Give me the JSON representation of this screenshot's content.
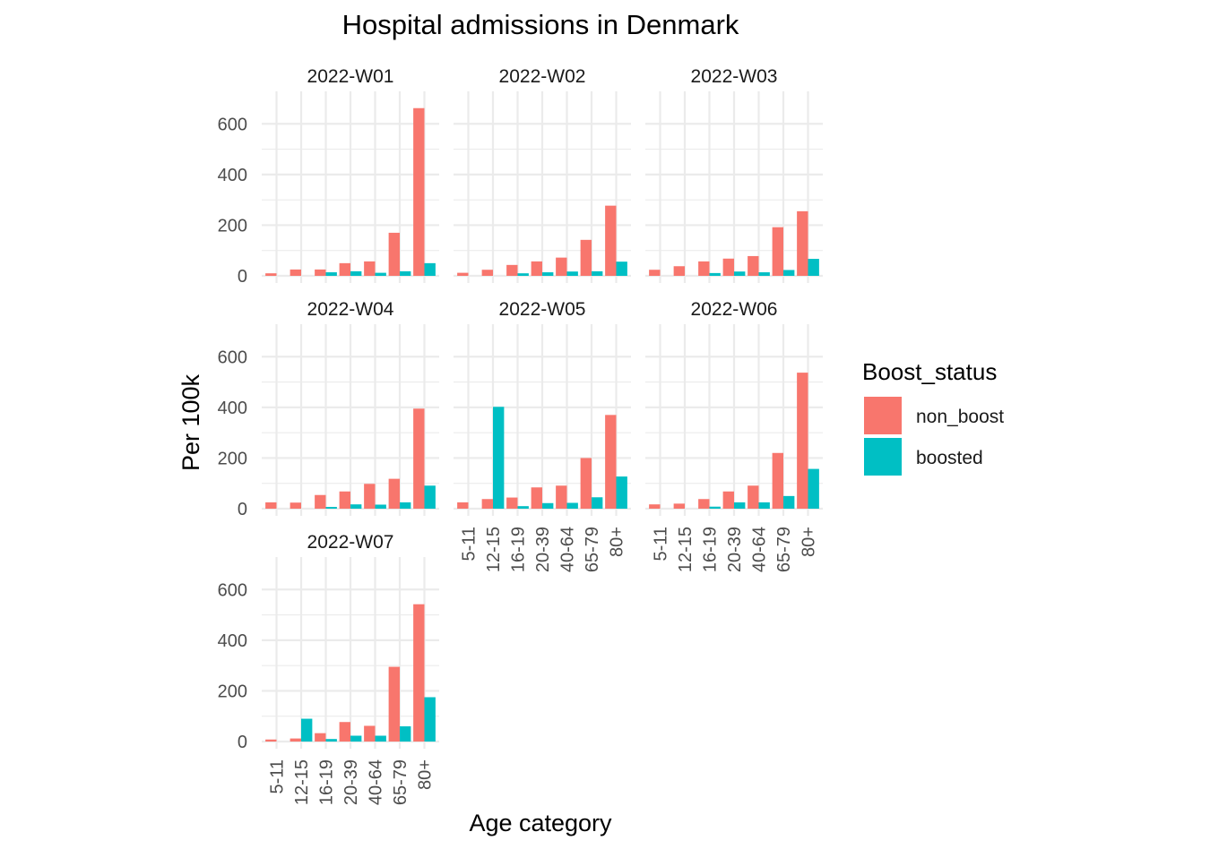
{
  "chart_data": {
    "type": "bar",
    "title": "Hospital admissions in Denmark",
    "xlabel": "Age category",
    "ylabel": "Per 100k",
    "ylim": [
      0,
      700
    ],
    "yticks": [
      0,
      200,
      400,
      600
    ],
    "grid": true,
    "legend": {
      "title": "Boost_status",
      "position": "right",
      "entries": [
        {
          "name": "non_boost",
          "color": "#F8766D"
        },
        {
          "name": "boosted",
          "color": "#00BFC4"
        }
      ]
    },
    "categories": [
      "5-11",
      "12-15",
      "16-19",
      "20-39",
      "40-64",
      "65-79",
      "80+"
    ],
    "panels": [
      {
        "label": "2022-W01",
        "series": [
          {
            "name": "non_boost",
            "values": [
              10,
              25,
              25,
              50,
              57,
              170,
              662
            ]
          },
          {
            "name": "boosted",
            "values": [
              0,
              0,
              14,
              18,
              12,
              18,
              50
            ]
          }
        ]
      },
      {
        "label": "2022-W02",
        "series": [
          {
            "name": "non_boost",
            "values": [
              12,
              24,
              43,
              57,
              72,
              142,
              277
            ]
          },
          {
            "name": "boosted",
            "values": [
              0,
              0,
              10,
              14,
              17,
              18,
              56
            ]
          }
        ]
      },
      {
        "label": "2022-W03",
        "series": [
          {
            "name": "non_boost",
            "values": [
              24,
              38,
              57,
              68,
              78,
              192,
              255
            ]
          },
          {
            "name": "boosted",
            "values": [
              0,
              0,
              11,
              17,
              14,
              23,
              67
            ]
          }
        ]
      },
      {
        "label": "2022-W04",
        "series": [
          {
            "name": "non_boost",
            "values": [
              25,
              24,
              54,
              68,
              98,
              118,
              395
            ]
          },
          {
            "name": "boosted",
            "values": [
              0,
              0,
              7,
              17,
              16,
              25,
              91
            ]
          }
        ]
      },
      {
        "label": "2022-W05",
        "series": [
          {
            "name": "non_boost",
            "values": [
              25,
              38,
              44,
              84,
              91,
              200,
              370
            ]
          },
          {
            "name": "boosted",
            "values": [
              0,
              402,
              10,
              22,
              23,
              45,
              127
            ]
          }
        ]
      },
      {
        "label": "2022-W06",
        "series": [
          {
            "name": "non_boost",
            "values": [
              17,
              20,
              38,
              68,
              91,
              220,
              537
            ]
          },
          {
            "name": "boosted",
            "values": [
              0,
              0,
              8,
              25,
              25,
              50,
              157
            ]
          }
        ]
      },
      {
        "label": "2022-W07",
        "series": [
          {
            "name": "non_boost",
            "values": [
              8,
              12,
              33,
              77,
              62,
              295,
              542
            ]
          },
          {
            "name": "boosted",
            "values": [
              0,
              90,
              10,
              23,
              23,
              60,
              175
            ]
          }
        ]
      }
    ]
  }
}
